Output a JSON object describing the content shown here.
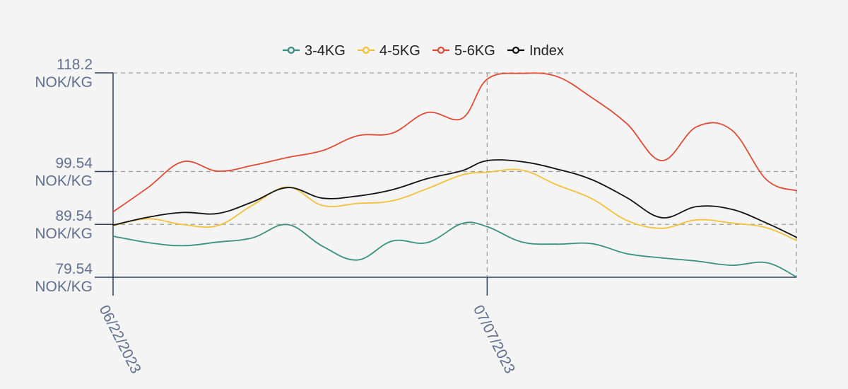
{
  "chart_data": {
    "type": "line",
    "title": "",
    "xlabel": "",
    "ylabel": "",
    "x_tick_labels": [
      "06/22/2023",
      "07/07/2023"
    ],
    "x_tick_positions": [
      0,
      15
    ],
    "y_ticks": [
      {
        "value": 79.54,
        "label": "79.54",
        "unit": "NOK/KG"
      },
      {
        "value": 89.54,
        "label": "89.54",
        "unit": "NOK/KG"
      },
      {
        "value": 99.54,
        "label": "99.54",
        "unit": "NOK/KG"
      },
      {
        "value": 118.2,
        "label": "118.2",
        "unit": "NOK/KG"
      }
    ],
    "ylim": [
      79.54,
      118.2
    ],
    "xlim": [
      0,
      27.4
    ],
    "grid": true,
    "legend_position": "top-center",
    "x": [
      0,
      1.4,
      2.8,
      4.2,
      5.6,
      7,
      8.4,
      9.8,
      11.2,
      12.6,
      14,
      15,
      16.4,
      17.8,
      19.2,
      20.6,
      22,
      23.4,
      24.8,
      26.2,
      27.4
    ],
    "series": [
      {
        "name": "3-4KG",
        "color": "#3a9080",
        "values": [
          87.3,
          86.1,
          85.5,
          86.2,
          87.0,
          89.5,
          85.4,
          82.8,
          86.4,
          86.1,
          89.7,
          89.1,
          86.2,
          85.8,
          85.9,
          84.0,
          83.2,
          82.6,
          81.8,
          82.3,
          79.6
        ]
      },
      {
        "name": "4-5KG",
        "color": "#f2c23b",
        "values": [
          89.3,
          90.6,
          89.5,
          89.3,
          93.2,
          96.6,
          93.1,
          93.5,
          94.0,
          96.3,
          98.9,
          99.4,
          99.8,
          97.0,
          94.4,
          90.3,
          88.8,
          90.4,
          89.8,
          88.9,
          86.5
        ]
      },
      {
        "name": "5-6KG",
        "color": "#e04b35",
        "values": [
          91.9,
          96.5,
          101.4,
          99.6,
          100.7,
          102.2,
          103.5,
          106.3,
          106.8,
          110.7,
          109.6,
          117.0,
          118.1,
          117.5,
          113.5,
          108.6,
          101.6,
          108.0,
          107.4,
          98.0,
          95.9
        ]
      },
      {
        "name": "Index",
        "color": "#111111",
        "values": [
          89.4,
          90.9,
          91.8,
          91.6,
          93.8,
          96.5,
          94.5,
          94.9,
          96.1,
          98.2,
          99.7,
          101.6,
          101.4,
          100.0,
          98.0,
          94.6,
          90.8,
          92.9,
          92.4,
          89.8,
          87.1
        ]
      }
    ]
  }
}
